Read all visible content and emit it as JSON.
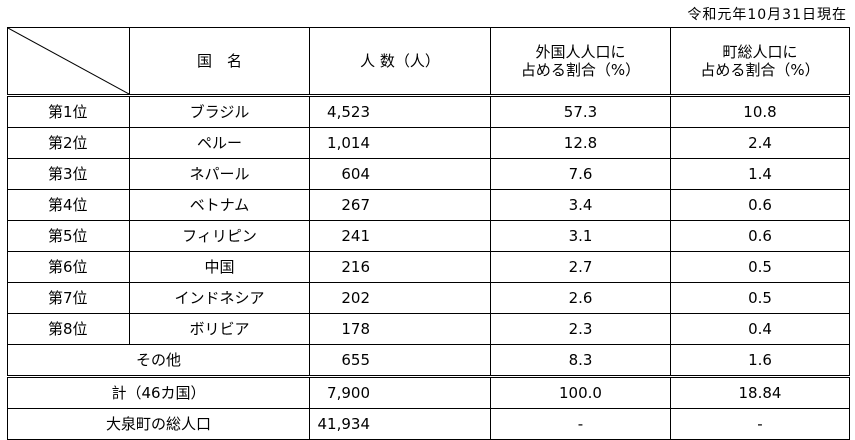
{
  "date": "令和元年10月31日現在",
  "headers": {
    "country": "国　名",
    "population": "人 数（人）",
    "foreign_ratio_l1": "外国人人口に",
    "foreign_ratio_l2": "占める割合（%）",
    "town_ratio_l1": "町総人口に",
    "town_ratio_l2": "占める割合（%）"
  },
  "rows": [
    {
      "rank": "第1位",
      "country": "ブラジル",
      "population": "4,523",
      "foreign_pct": "57.3",
      "town_pct": "10.8"
    },
    {
      "rank": "第2位",
      "country": "ペルー",
      "population": "1,014",
      "foreign_pct": "12.8",
      "town_pct": "2.4"
    },
    {
      "rank": "第3位",
      "country": "ネパール",
      "population": "604",
      "foreign_pct": "7.6",
      "town_pct": "1.4"
    },
    {
      "rank": "第4位",
      "country": "ベトナム",
      "population": "267",
      "foreign_pct": "3.4",
      "town_pct": "0.6"
    },
    {
      "rank": "第5位",
      "country": "フィリピン",
      "population": "241",
      "foreign_pct": "3.1",
      "town_pct": "0.6"
    },
    {
      "rank": "第6位",
      "country": "中国",
      "population": "216",
      "foreign_pct": "2.7",
      "town_pct": "0.5"
    },
    {
      "rank": "第7位",
      "country": "インドネシア",
      "population": "202",
      "foreign_pct": "2.6",
      "town_pct": "0.5"
    },
    {
      "rank": "第8位",
      "country": "ボリビア",
      "population": "178",
      "foreign_pct": "2.3",
      "town_pct": "0.4"
    }
  ],
  "other": {
    "label": "その他",
    "population": "655",
    "foreign_pct": "8.3",
    "town_pct": "1.6"
  },
  "total": {
    "label": "計（46カ国）",
    "population": "7,900",
    "foreign_pct": "100.0",
    "town_pct": "18.84"
  },
  "town_population": {
    "label": "大泉町の総人口",
    "population": "41,934",
    "foreign_pct": "-",
    "town_pct": "-"
  }
}
